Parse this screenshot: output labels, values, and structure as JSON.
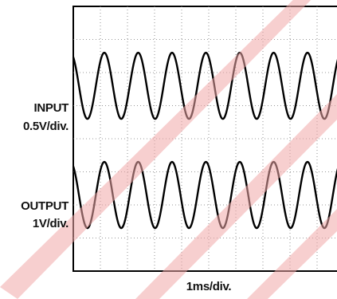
{
  "channels": [
    {
      "name": "INPUT",
      "scale": "0.5V/div."
    },
    {
      "name": "OUTPUT",
      "scale": "1V/div."
    }
  ],
  "chart_data": {
    "type": "line",
    "xlabel": "1ms/div.",
    "x_unit": "ms",
    "xlim": [
      0,
      10
    ],
    "grid": true,
    "grid_style": "dotted",
    "divisions": {
      "horizontal": 10,
      "vertical": 8
    },
    "series": [
      {
        "name": "INPUT",
        "scale_per_div": "0.5V/div.",
        "waveform": "sine",
        "frequency_khz": 0.8,
        "period_ms": 1.25,
        "amplitude_div": 1.0,
        "offset_div": 1.6,
        "phase_deg": 120,
        "color": "#000000"
      },
      {
        "name": "OUTPUT",
        "scale_per_div": "1V/div.",
        "waveform": "sine",
        "frequency_khz": 0.8,
        "period_ms": 1.25,
        "amplitude_div": 1.0,
        "offset_div": -1.7,
        "phase_deg": 120,
        "color": "#000000"
      }
    ],
    "watermark_color": "#f0a8a8"
  }
}
